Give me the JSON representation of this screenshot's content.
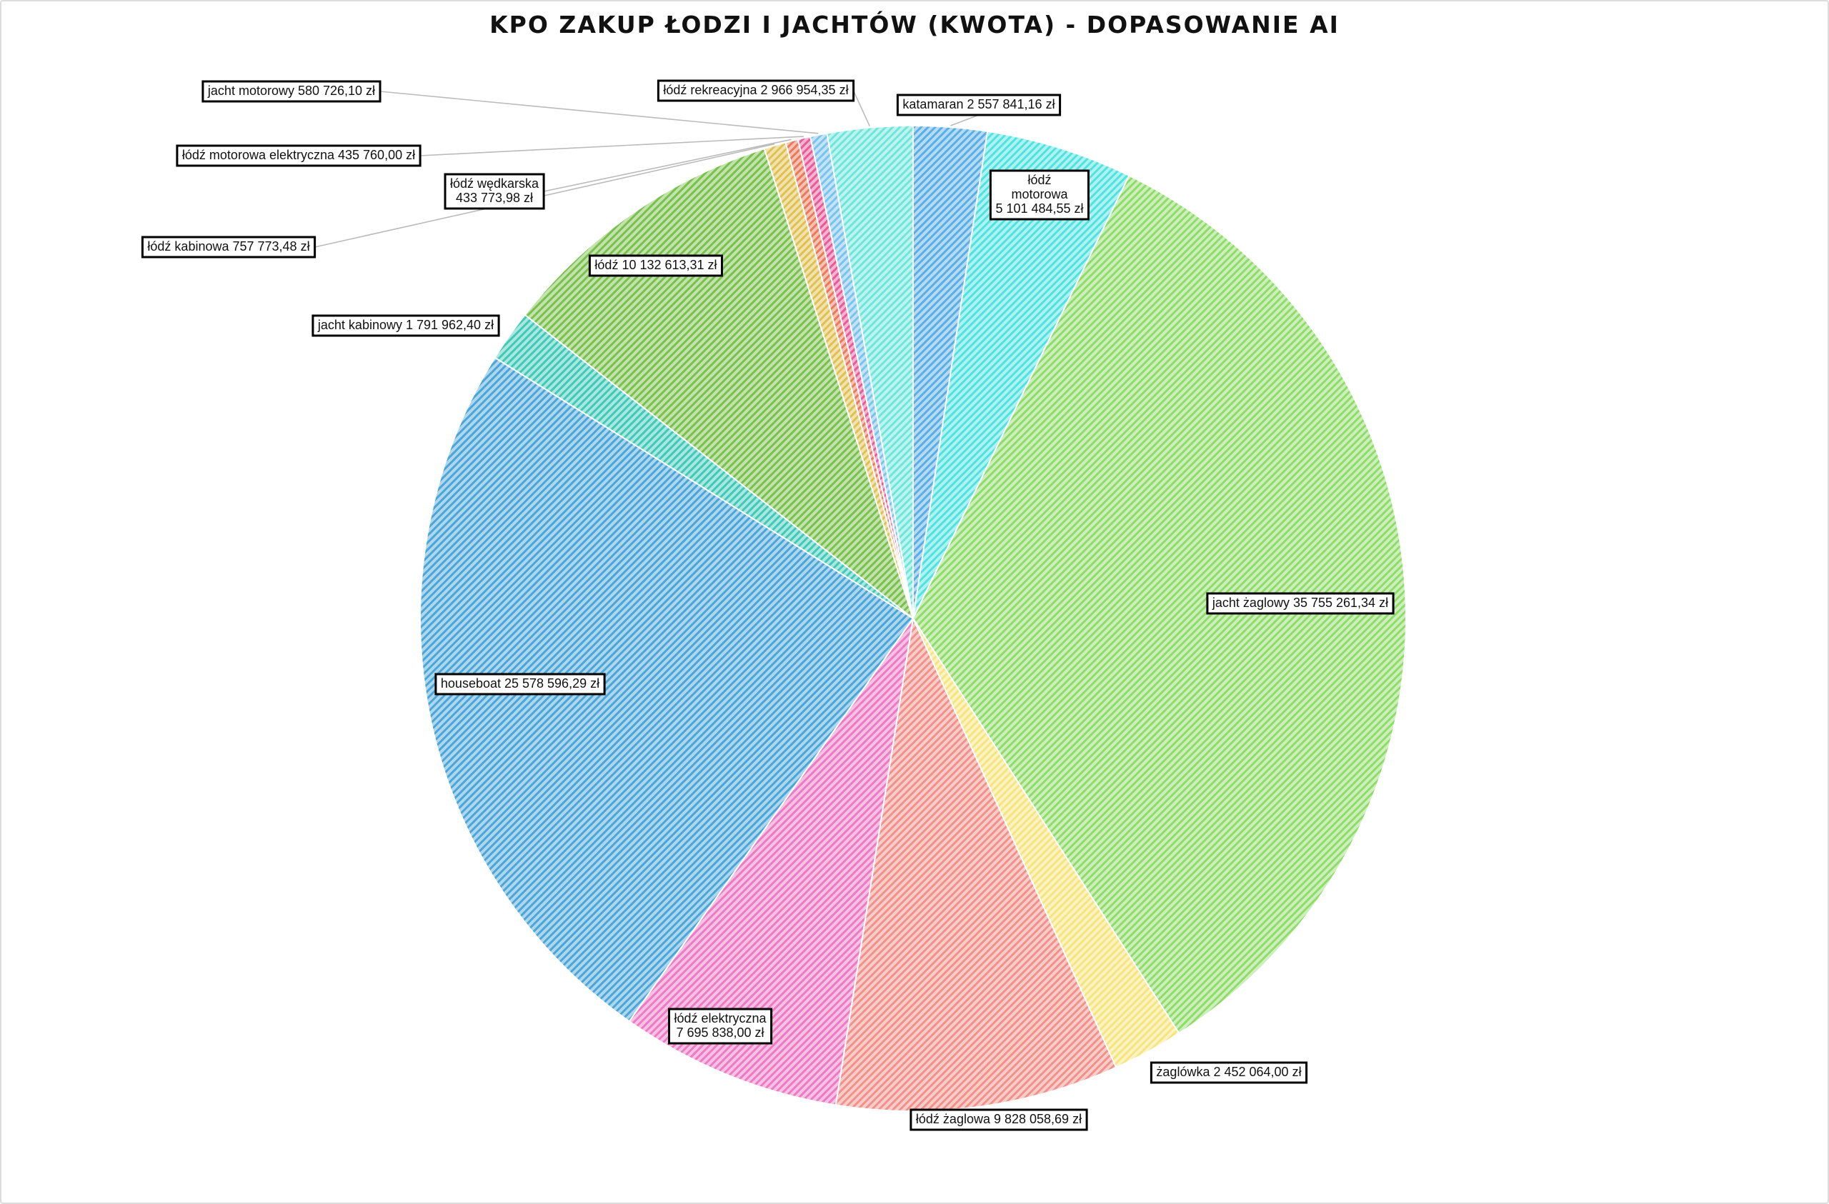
{
  "chart_data": {
    "type": "pie",
    "title": "KPO ZAKUP ŁODZI I JACHTÓW (KWOTA) - DOPASOWANIE AI",
    "grid": false,
    "legend": "none",
    "start": "top",
    "direction": "clockwise",
    "slices": [
      {
        "name": "katamaran",
        "value": 2557841.16,
        "label": [
          "katamaran 2 557 841,16 zł"
        ],
        "color": "#5aaee6"
      },
      {
        "name": "łódź motorowa",
        "value": 5101484.55,
        "label": [
          "łódź",
          "motorowa",
          "5 101 484,55 zł"
        ],
        "color": "#4fe3e0"
      },
      {
        "name": "jacht żaglowy",
        "value": 35755261.34,
        "label": [
          "jacht żaglowy 35 755 261,34 zł"
        ],
        "color": "#8fdc6a"
      },
      {
        "name": "żaglówka",
        "value": 2452064.0,
        "label": [
          "żaglówka 2 452 064,00 zł"
        ],
        "color": "#f6e47c"
      },
      {
        "name": "łódź żaglowa",
        "value": 9828058.69,
        "label": [
          "łódź żaglowa 9 828 058,69 zł"
        ],
        "color": "#f2918a"
      },
      {
        "name": "łódź elektryczna",
        "value": 7695838.0,
        "label": [
          "łódź elektryczna",
          "7 695 838,00 zł"
        ],
        "color": "#ee79c4"
      },
      {
        "name": "houseboat",
        "value": 25578596.29,
        "label": [
          "houseboat 25 578 596,29 zł"
        ],
        "color": "#4aa6d8"
      },
      {
        "name": "jacht kabinowy",
        "value": 1791962.4,
        "label": [
          "jacht kabinowy 1 791 962,40 zł"
        ],
        "color": "#3fc9b8"
      },
      {
        "name": "łódź",
        "value": 10132613.31,
        "label": [
          "łódź 10 132 613,31 zł"
        ],
        "color": "#79c04c"
      },
      {
        "name": "łódź kabinowa",
        "value": 757773.48,
        "label": [
          "łódź kabinowa 757 773,48 zł"
        ],
        "color": "#e0c050"
      },
      {
        "name": "łódź wędkarska",
        "value": 433773.98,
        "label": [
          "łódź wędkarska",
          "433 773,98 zł"
        ],
        "color": "#ea7a5a"
      },
      {
        "name": "łódź motorowa elektryczna",
        "value": 435760.0,
        "label": [
          "łódź motorowa elektryczna 435 760,00 zł"
        ],
        "color": "#e85a98"
      },
      {
        "name": "jacht motorowy",
        "value": 580726.1,
        "label": [
          "jacht motorowy 580 726,10 zł"
        ],
        "color": "#7ac3ee"
      },
      {
        "name": "łódź rekreacyjna",
        "value": 2966954.35,
        "label": [
          "łódź rekreacyjna 2 966 954,35 zł"
        ],
        "color": "#6fe6dc"
      }
    ]
  }
}
